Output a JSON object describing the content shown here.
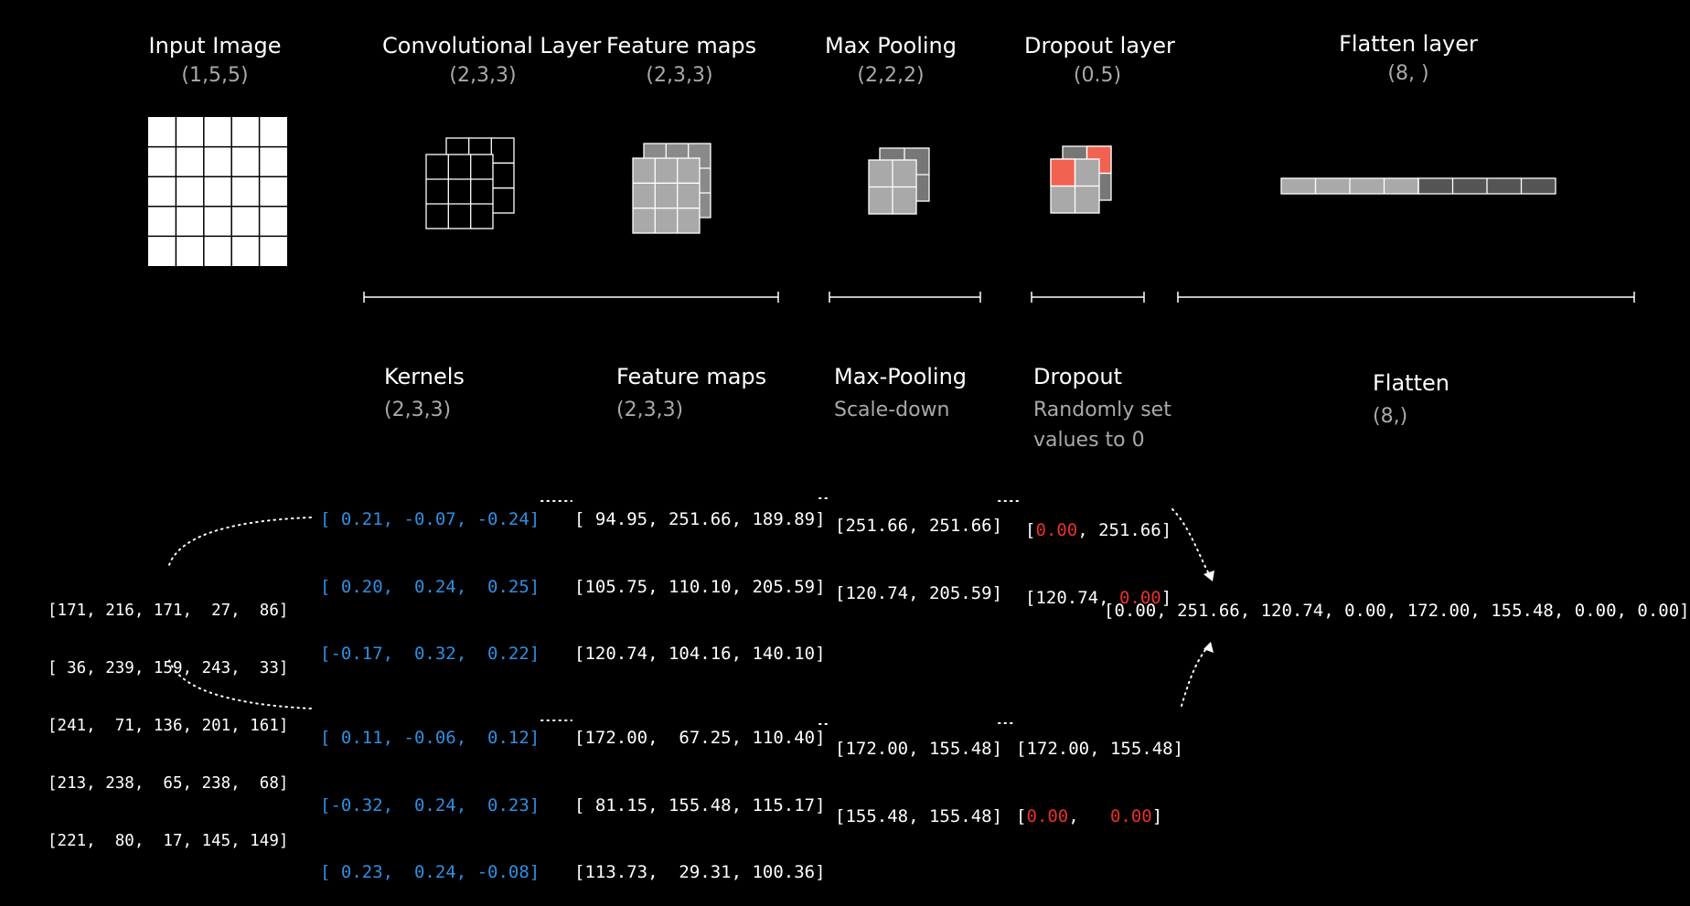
{
  "headers": {
    "input": {
      "title": "Input Image",
      "shape": "(1,5,5)"
    },
    "conv": {
      "title": "Convolutional Layer",
      "shape": "(2,3,3)"
    },
    "feature": {
      "title": "Feature maps",
      "shape": "(2,3,3)"
    },
    "maxpool": {
      "title": "Max Pooling",
      "shape": "(2,2,2)"
    },
    "dropout": {
      "title": "Dropout layer",
      "shape": "(0.5)"
    },
    "flatten": {
      "title": "Flatten layer",
      "shape": "(8, )"
    }
  },
  "labels": {
    "kernels": {
      "title": "Kernels",
      "sub": "(2,3,3)"
    },
    "feature": {
      "title": "Feature maps",
      "sub": "(2,3,3)"
    },
    "maxpool": {
      "title": "Max-Pooling",
      "sub": "Scale-down"
    },
    "dropout": {
      "title": "Dropout",
      "sub1": "Randomly set",
      "sub2": "values to 0"
    },
    "flatten": {
      "title": "Flatten",
      "sub": "(8,)"
    }
  },
  "input_matrix": [
    "[171, 216, 171,  27,  86]",
    "[ 36, 239, 159, 243,  33]",
    "[241,  71, 136, 201, 161]",
    "[213, 238,  65, 238,  68]",
    "[221,  80,  17, 145, 149]"
  ],
  "kernel1": [
    "[ 0.21, -0.07, -0.24]",
    "[ 0.20,  0.24,  0.25]",
    "[-0.17,  0.32,  0.22]"
  ],
  "kernel2": [
    "[ 0.11, -0.06,  0.12]",
    "[-0.32,  0.24,  0.23]",
    "[ 0.23,  0.24, -0.08]"
  ],
  "fmap1": [
    "[ 94.95, 251.66, 189.89]",
    "[105.75, 110.10, 205.59]",
    "[120.74, 104.16, 140.10]"
  ],
  "fmap2": [
    "[172.00,  67.25, 110.40]",
    "[ 81.15, 155.48, 115.17]",
    "[113.73,  29.31, 100.36]"
  ],
  "pool1": [
    "[251.66, 251.66]",
    "[120.74, 205.59]"
  ],
  "pool2": [
    "[172.00, 155.48]",
    "[155.48, 155.48]"
  ],
  "drop1": {
    "r1_open": "[",
    "r1_zero": "0.00",
    "r1_rest": ", 251.66]",
    "r2_start": "[120.74, ",
    "r2_zero": "0.00",
    "r2_close": "]"
  },
  "drop2": {
    "r1": "[172.00, 155.48]",
    "r2_open": "[",
    "r2_zero1": "0.00",
    "r2_sep": ",   ",
    "r2_zero2": "0.00",
    "r2_close": "]"
  },
  "flat_vector": "[0.00, 251.66, 120.74, 0.00, 172.00, 155.48, 0.00, 0.00]",
  "colors": {
    "kernel_text": "#2f8fe0",
    "dropped": "#e8302a",
    "fmap_fill": "#a9a9a9",
    "fmap_dark": "#555555",
    "drop_cell": "#f26250"
  }
}
